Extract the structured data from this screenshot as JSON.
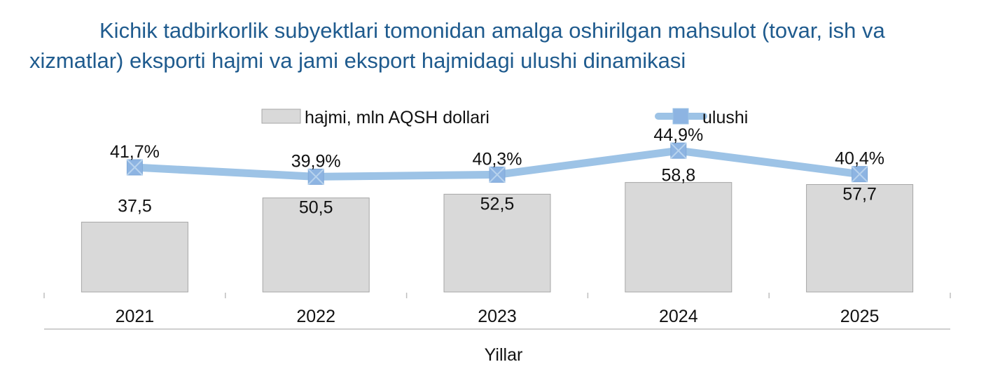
{
  "title": "Kichik tadbirkorlik subyektlari tomonidan amalga oshirilgan mahsulot (tovar, ish va xizmatlar) eksporti hajmi va  jami eksport hajmidagi ulushi dinamikasi",
  "chart_data": {
    "type": "bar",
    "categories": [
      "2021",
      "2022",
      "2023",
      "2024",
      "2025"
    ],
    "series": [
      {
        "name": "hajmi, mln AQSH dollari",
        "type": "bar",
        "values": [
          37.5,
          50.5,
          52.5,
          58.8,
          57.7
        ],
        "labels": [
          "37,5",
          "50,5",
          "52,5",
          "58,8",
          "57,7"
        ],
        "color": "#d9d9d9"
      },
      {
        "name": "ulushi",
        "type": "line",
        "values": [
          41.7,
          39.9,
          40.3,
          44.9,
          40.4
        ],
        "labels": [
          "41,7%",
          "39,9%",
          "40,3%",
          "44,9%",
          "40,4%"
        ],
        "color": "#9dc3e6",
        "marker_color": "#8db4e2"
      }
    ],
    "xlabel": "Yillar",
    "ylabel": "",
    "legend": "top",
    "grid": false
  }
}
